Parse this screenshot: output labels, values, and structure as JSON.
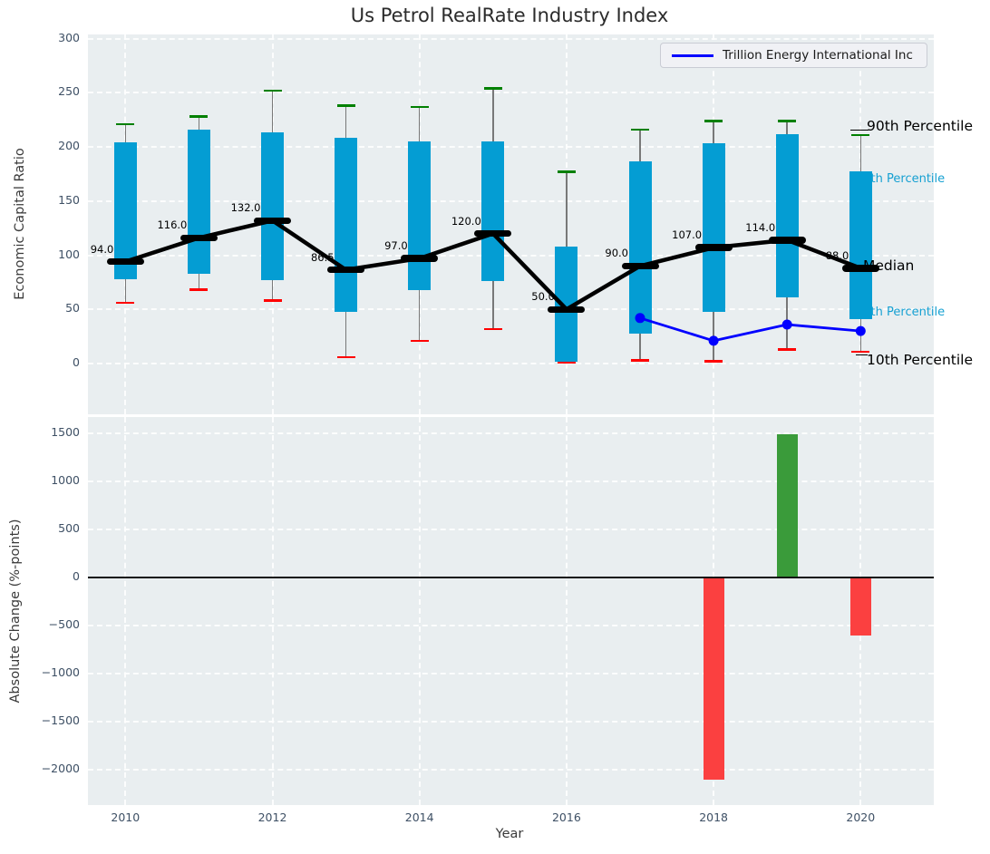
{
  "colors": {
    "panel": "#e9eef0",
    "grid": "#ffffff",
    "tick": "#3e5065",
    "title": "#2b2b2b",
    "box": "#049dd3",
    "whisker": "#787878",
    "capHigh": "#008000",
    "capLow": "#ff0000",
    "median": "#000000",
    "company": "#0000ff",
    "barPos": "#3a9b3a",
    "barNeg": "#fb4040",
    "annDark": "#000000",
    "annCyan": "#16a0d2",
    "legendBg": "#f0f1f5",
    "legendBorder": "#c9ccd4"
  },
  "annotations": {
    "p90": "90th Percentile",
    "p75": "75th Percentile",
    "median": "Median",
    "p25": "25th Percentile",
    "p10": "10th Percentile"
  },
  "chart_data": [
    {
      "type": "boxplot-with-trend",
      "title": "Us Petrol RealRate Industry Index",
      "ylabel": "Economic Capital Ratio",
      "xlabel": "Year",
      "ylim": [
        -47,
        310
      ],
      "yticks": [
        0,
        50,
        100,
        150,
        200,
        250,
        300
      ],
      "xticks": [
        2010,
        2012,
        2014,
        2016,
        2018,
        2020
      ],
      "grid": true,
      "legend_position": "upper right",
      "years": [
        2010,
        2011,
        2012,
        2013,
        2014,
        2015,
        2016,
        2017,
        2018,
        2019,
        2020
      ],
      "whisker_low": [
        56,
        68,
        58,
        6,
        21,
        32,
        1,
        3,
        2,
        13,
        11
      ],
      "q1": [
        78,
        83,
        77,
        48,
        68,
        76,
        2,
        28,
        48,
        61,
        41
      ],
      "median": [
        94.0,
        116.0,
        132.0,
        86.5,
        97.0,
        120.0,
        50.0,
        90.0,
        107.0,
        114.0,
        88.0
      ],
      "q3": [
        204,
        216,
        213,
        208,
        205,
        205,
        108,
        187,
        203,
        212,
        177
      ],
      "whisker_high": [
        221,
        228,
        252,
        238,
        237,
        254,
        177,
        216,
        224,
        224,
        211
      ],
      "median_labels": [
        "94.0",
        "116.0",
        "132.0",
        "86.5",
        "97.0",
        "120.0",
        "50.0",
        "90.0",
        "107.0",
        "114.0",
        "88.0"
      ],
      "series": [
        {
          "name": "Trillion Energy International Inc",
          "x": [
            2017,
            2018,
            2019,
            2020
          ],
          "y": [
            42,
            21,
            36,
            30
          ]
        }
      ]
    },
    {
      "type": "bar",
      "ylabel": "Absolute Change (%-points)",
      "xlabel": "Year",
      "ylim": [
        -2400,
        1670
      ],
      "yticks": [
        -2000,
        -1500,
        -1000,
        -500,
        0,
        500,
        1000,
        1500
      ],
      "xticks": [
        2010,
        2012,
        2014,
        2016,
        2018,
        2020
      ],
      "x": [
        2018,
        2019,
        2020
      ],
      "values": [
        -2110,
        1490,
        -610
      ]
    }
  ]
}
